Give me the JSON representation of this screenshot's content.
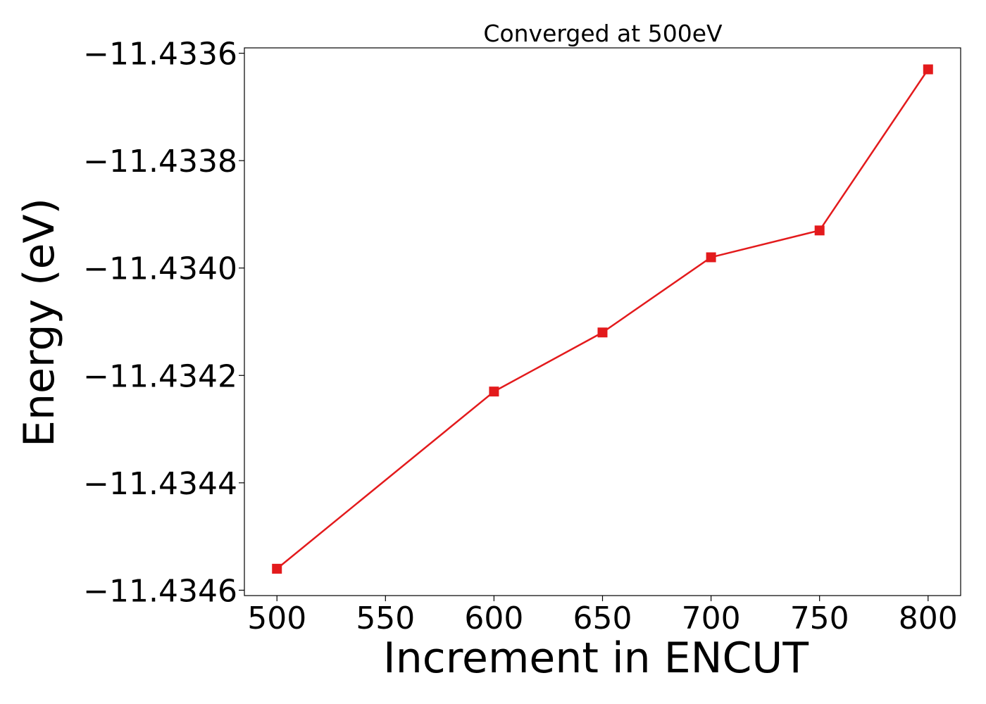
{
  "chart_data": {
    "type": "line",
    "title": "Converged at 500eV",
    "xlabel": "Increment in ENCUT",
    "ylabel": "Energy (eV)",
    "x": [
      500,
      600,
      650,
      700,
      750,
      800
    ],
    "series": [
      {
        "values": [
          -11.43456,
          -11.43423,
          -11.43412,
          -11.43398,
          -11.43393,
          -11.43363
        ],
        "color": "#e31a1c",
        "marker": "square"
      }
    ],
    "xlim": [
      485,
      815
    ],
    "ylim": [
      -11.43461,
      -11.43359
    ],
    "xticks": [
      500,
      550,
      600,
      650,
      700,
      750,
      800
    ],
    "xtick_labels": [
      "500",
      "550",
      "600",
      "650",
      "700",
      "750",
      "800"
    ],
    "yticks": [
      -11.4346,
      -11.4344,
      -11.4342,
      -11.434,
      -11.4338,
      -11.4336
    ],
    "ytick_labels": [
      "−11.4346",
      "−11.4344",
      "−11.4342",
      "−11.4340",
      "−11.4338",
      "−11.4336"
    ],
    "grid": false,
    "legend": "none"
  }
}
